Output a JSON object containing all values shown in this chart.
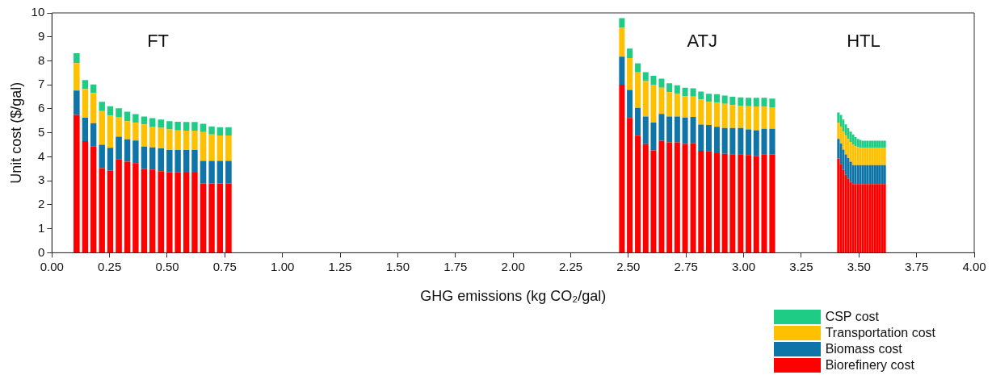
{
  "chart_data": {
    "type": "bar",
    "stacked": true,
    "xlabel": "GHG emissions (kg CO₂/gal)",
    "ylabel": "Unit cost ($/gal)",
    "x": [
      0.107,
      0.144,
      0.18,
      0.217,
      0.253,
      0.29,
      0.327,
      0.363,
      0.4,
      0.436,
      0.473,
      0.51,
      0.546,
      0.583,
      0.619,
      0.656,
      0.693,
      0.729,
      0.766,
      2.472,
      2.506,
      2.541,
      2.575,
      2.609,
      2.644,
      2.678,
      2.712,
      2.746,
      2.781,
      2.815,
      2.849,
      2.884,
      2.918,
      2.952,
      2.987,
      3.021,
      3.055,
      3.089,
      3.124,
      3.411,
      3.422,
      3.432,
      3.443,
      3.453,
      3.464,
      3.475,
      3.485,
      3.496,
      3.506,
      3.517,
      3.528,
      3.538,
      3.549,
      3.559,
      3.57,
      3.581,
      3.591,
      3.602,
      3.612
    ],
    "series": [
      {
        "name": "Biorefinery cost",
        "color": "#ff0000",
        "values": [
          5.75,
          4.65,
          4.43,
          3.53,
          3.42,
          3.89,
          3.8,
          3.74,
          3.49,
          3.47,
          3.4,
          3.36,
          3.35,
          3.34,
          3.34,
          2.89,
          2.89,
          2.89,
          2.89,
          7.01,
          5.62,
          4.88,
          4.53,
          4.27,
          4.67,
          4.6,
          4.6,
          4.54,
          4.57,
          4.25,
          4.24,
          4.15,
          4.12,
          4.11,
          4.11,
          4.07,
          4.02,
          4.11,
          4.1,
          3.93,
          3.7,
          3.45,
          3.25,
          3.1,
          2.95,
          2.86,
          2.86,
          2.86,
          2.86,
          2.86,
          2.86,
          2.86,
          2.86,
          2.86,
          2.86,
          2.86,
          2.86,
          2.86,
          2.86
        ]
      },
      {
        "name": "Biomass cost",
        "color": "#0f75a8",
        "values": [
          1.01,
          0.98,
          0.97,
          0.97,
          0.96,
          0.95,
          0.93,
          0.94,
          0.94,
          0.92,
          0.95,
          0.92,
          0.93,
          0.94,
          0.94,
          0.94,
          0.94,
          0.94,
          0.94,
          1.17,
          1.17,
          1.16,
          1.15,
          1.16,
          1.12,
          1.08,
          1.08,
          1.1,
          1.09,
          1.09,
          1.09,
          1.1,
          1.08,
          1.09,
          1.09,
          1.07,
          1.09,
          1.06,
          1.07,
          0.82,
          0.85,
          0.85,
          0.85,
          0.85,
          0.85,
          0.79,
          0.79,
          0.79,
          0.79,
          0.79,
          0.79,
          0.79,
          0.79,
          0.79,
          0.79,
          0.79,
          0.79,
          0.79,
          0.79
        ]
      },
      {
        "name": "Transportation cost",
        "color": "#ffc000",
        "values": [
          1.15,
          1.19,
          1.26,
          1.41,
          1.34,
          0.82,
          0.76,
          0.74,
          0.92,
          0.87,
          0.86,
          0.86,
          0.82,
          0.81,
          0.81,
          1.2,
          1.1,
          1.06,
          1.06,
          1.2,
          1.33,
          1.48,
          1.48,
          1.56,
          1.09,
          1.02,
          0.94,
          0.88,
          0.85,
          1.05,
          0.96,
          1.01,
          1.01,
          0.96,
          0.92,
          0.97,
          0.99,
          0.92,
          0.9,
          0.68,
          0.7,
          0.75,
          0.8,
          0.8,
          0.82,
          0.87,
          0.8,
          0.75,
          0.73,
          0.72,
          0.72,
          0.72,
          0.72,
          0.72,
          0.72,
          0.72,
          0.72,
          0.72,
          0.72
        ]
      },
      {
        "name": "CSP cost",
        "color": "#1fcc86",
        "values": [
          0.41,
          0.38,
          0.36,
          0.38,
          0.39,
          0.36,
          0.39,
          0.36,
          0.33,
          0.35,
          0.34,
          0.35,
          0.36,
          0.36,
          0.36,
          0.35,
          0.34,
          0.34,
          0.34,
          0.4,
          0.39,
          0.38,
          0.37,
          0.39,
          0.38,
          0.37,
          0.36,
          0.36,
          0.35,
          0.33,
          0.34,
          0.35,
          0.34,
          0.34,
          0.36,
          0.35,
          0.36,
          0.37,
          0.36,
          0.42,
          0.5,
          0.5,
          0.45,
          0.45,
          0.43,
          0.41,
          0.37,
          0.35,
          0.32,
          0.3,
          0.3,
          0.3,
          0.3,
          0.3,
          0.3,
          0.3,
          0.3,
          0.3,
          0.3
        ]
      }
    ],
    "xlim": [
      0,
      4
    ],
    "xticks": [
      {
        "value": 0,
        "label": "0.00"
      },
      {
        "value": 0.25,
        "label": "0.25"
      },
      {
        "value": 0.5,
        "label": "0.50"
      },
      {
        "value": 0.75,
        "label": "0.75"
      },
      {
        "value": 1,
        "label": "1.00"
      },
      {
        "value": 1.25,
        "label": "1.25"
      },
      {
        "value": 1.5,
        "label": "1.50"
      },
      {
        "value": 1.75,
        "label": "1.75"
      },
      {
        "value": 2,
        "label": "2.00"
      },
      {
        "value": 2.25,
        "label": "2.25"
      },
      {
        "value": 2.5,
        "label": "2.50"
      },
      {
        "value": 2.75,
        "label": "2.75"
      },
      {
        "value": 3,
        "label": "3.00"
      },
      {
        "value": 3.25,
        "label": "3.25"
      },
      {
        "value": 3.5,
        "label": "3.50"
      },
      {
        "value": 3.75,
        "label": "3.75"
      },
      {
        "value": 4,
        "label": "4.00"
      }
    ],
    "ylim": [
      0,
      10
    ],
    "yticks": [
      0,
      1,
      2,
      3,
      4,
      5,
      6,
      7,
      8,
      9,
      10
    ],
    "annotations": [
      "FT",
      "ATJ",
      "HTL"
    ],
    "grid": false,
    "legend": "bottom right"
  }
}
